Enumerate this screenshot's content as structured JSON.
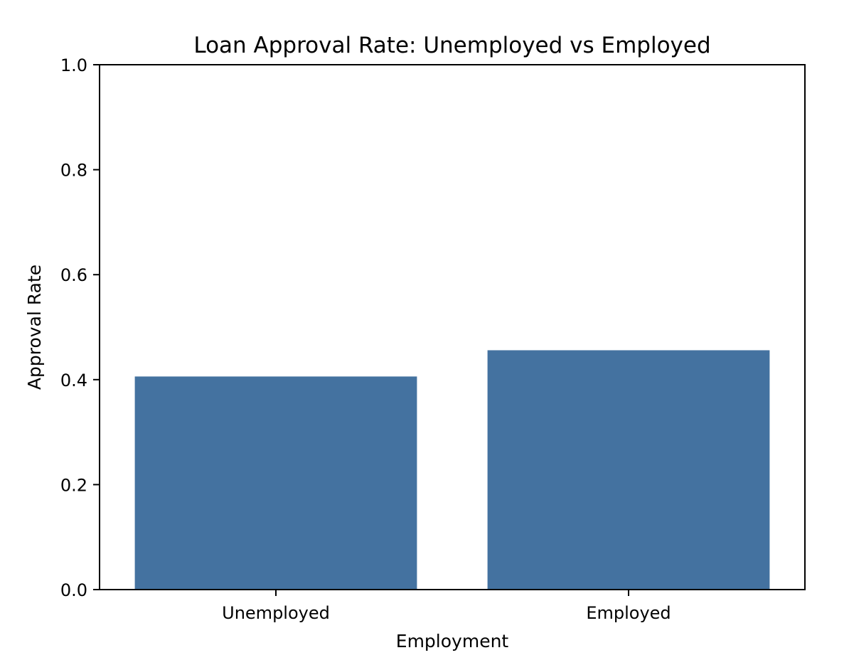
{
  "chart_data": {
    "type": "bar",
    "title": "Loan Approval Rate: Unemployed vs Employed",
    "xlabel": "Employment",
    "ylabel": "Approval Rate",
    "categories": [
      "Unemployed",
      "Employed"
    ],
    "values": [
      0.406,
      0.456
    ],
    "ylim": [
      0,
      1.0
    ],
    "yticks": [
      "0.0",
      "0.2",
      "0.4",
      "0.6",
      "0.8",
      "1.0"
    ],
    "grid": false,
    "bar_color": "#4472a0"
  }
}
